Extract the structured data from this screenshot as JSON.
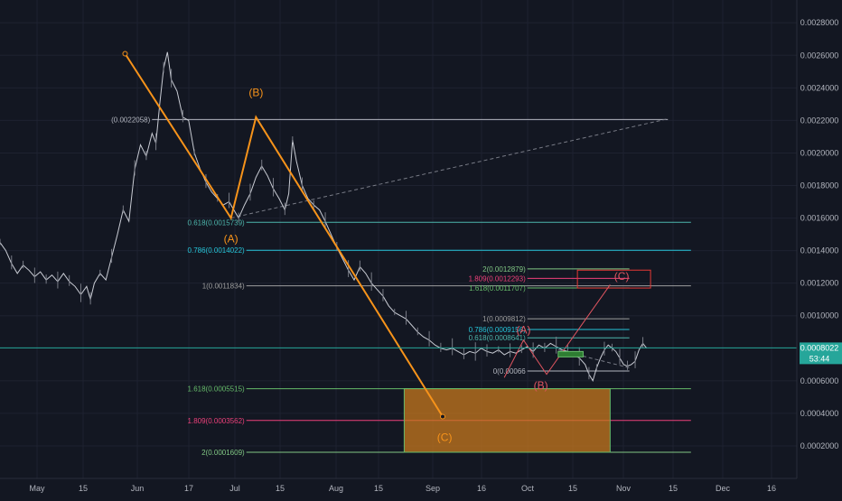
{
  "chart_data": {
    "type": "line",
    "theme": "dark",
    "x_ticks": [
      "May",
      "15",
      "Jun",
      "17",
      "Jul",
      "15",
      "Aug",
      "15",
      "Sep",
      "16",
      "Oct",
      "15",
      "Nov",
      "15",
      "Dec",
      "16"
    ],
    "y_ticks": [
      "0.0028000",
      "0.0026000",
      "0.0024000",
      "0.0022000",
      "0.0020000",
      "0.0018000",
      "0.0016000",
      "0.0014000",
      "0.0012000",
      "0.0010000",
      "0.0006000",
      "0.0004000",
      "0.0002000"
    ],
    "ylim": [
      0.0,
      0.00294
    ],
    "price_badge": {
      "value": "0.0008022",
      "countdown": "53:44",
      "price": 0.0008022,
      "color": "#26a69a"
    },
    "series": [
      {
        "values": [
          [
            0,
            0.00145
          ],
          [
            3,
            0.0014
          ],
          [
            6,
            0.00132
          ],
          [
            9,
            0.00126
          ],
          [
            12,
            0.00131
          ],
          [
            15,
            0.00128
          ],
          [
            18,
            0.00124
          ],
          [
            21,
            0.00127
          ],
          [
            24,
            0.00122
          ],
          [
            27,
            0.00125
          ],
          [
            30,
            0.00121
          ],
          [
            33,
            0.00126
          ],
          [
            36,
            0.00121
          ],
          [
            39,
            0.00118
          ],
          [
            42,
            0.00113
          ],
          [
            45,
            0.00118
          ],
          [
            47,
            0.0011
          ],
          [
            49,
            0.0012
          ],
          [
            52,
            0.00126
          ],
          [
            55,
            0.00122
          ],
          [
            58,
            0.00136
          ],
          [
            61,
            0.0015
          ],
          [
            64,
            0.00165
          ],
          [
            67,
            0.00158
          ],
          [
            70,
            0.0019
          ],
          [
            73,
            0.00205
          ],
          [
            76,
            0.00198
          ],
          [
            79,
            0.00212
          ],
          [
            81,
            0.00206
          ],
          [
            83,
            0.0023
          ],
          [
            85,
            0.00252
          ],
          [
            87,
            0.00262
          ],
          [
            89,
            0.00245
          ],
          [
            92,
            0.00238
          ],
          [
            95,
            0.00222
          ],
          [
            98,
            0.0022
          ],
          [
            101,
            0.002
          ],
          [
            104,
            0.0019
          ],
          [
            107,
            0.00182
          ],
          [
            110,
            0.00176
          ],
          [
            113,
            0.00172
          ],
          [
            116,
            0.00168
          ],
          [
            119,
            0.0017
          ],
          [
            122,
            0.00164
          ],
          [
            124,
            0.0016
          ],
          [
            127,
            0.00168
          ],
          [
            130,
            0.00175
          ],
          [
            133,
            0.00185
          ],
          [
            136,
            0.00192
          ],
          [
            139,
            0.00186
          ],
          [
            142,
            0.00178
          ],
          [
            145,
            0.00172
          ],
          [
            148,
            0.00165
          ],
          [
            150,
            0.00175
          ],
          [
            152,
            0.00208
          ],
          [
            154,
            0.00195
          ],
          [
            157,
            0.0018
          ],
          [
            160,
            0.00172
          ],
          [
            163,
            0.00168
          ],
          [
            166,
            0.00165
          ],
          [
            169,
            0.00158
          ],
          [
            172,
            0.0015
          ],
          [
            175,
            0.00142
          ],
          [
            178,
            0.00135
          ],
          [
            181,
            0.00128
          ],
          [
            184,
            0.00122
          ],
          [
            187,
            0.0013
          ],
          [
            190,
            0.00126
          ],
          [
            193,
            0.0012
          ],
          [
            196,
            0.00116
          ],
          [
            199,
            0.00112
          ],
          [
            202,
            0.00106
          ],
          [
            205,
            0.00102
          ],
          [
            208,
            0.001
          ],
          [
            211,
            0.00098
          ],
          [
            214,
            0.00094
          ],
          [
            217,
            0.0009
          ],
          [
            220,
            0.00087
          ],
          [
            223,
            0.00085
          ],
          [
            226,
            0.00082
          ],
          [
            229,
            0.0008
          ],
          [
            232,
            0.00079
          ],
          [
            235,
            0.0008
          ],
          [
            238,
            0.00078
          ],
          [
            241,
            0.00076
          ],
          [
            244,
            0.00078
          ],
          [
            247,
            0.00077
          ],
          [
            250,
            0.0008
          ],
          [
            253,
            0.00078
          ],
          [
            256,
            0.00077
          ],
          [
            259,
            0.00079
          ],
          [
            262,
            0.00076
          ],
          [
            265,
            0.00078
          ],
          [
            268,
            0.00077
          ],
          [
            271,
            0.00079
          ],
          [
            274,
            0.00081
          ],
          [
            277,
            0.00078
          ],
          [
            280,
            0.00082
          ],
          [
            283,
            0.0008
          ],
          [
            286,
            0.00083
          ],
          [
            289,
            0.00081
          ],
          [
            292,
            0.00079
          ],
          [
            295,
            0.00078
          ],
          [
            298,
            0.00076
          ],
          [
            301,
            0.00074
          ],
          [
            304,
            0.0007
          ],
          [
            306,
            0.00064
          ],
          [
            308,
            0.0006
          ],
          [
            310,
            0.00068
          ],
          [
            312,
            0.00074
          ],
          [
            314,
            0.00079
          ],
          [
            316,
            0.00082
          ],
          [
            318,
            0.0008
          ],
          [
            320,
            0.00078
          ],
          [
            322,
            0.00074
          ],
          [
            324,
            0.0007
          ],
          [
            326,
            0.00069
          ],
          [
            328,
            0.0007
          ],
          [
            330,
            0.00072
          ],
          [
            332,
            0.00079
          ],
          [
            334,
            0.00083
          ],
          [
            336,
            0.0008
          ]
        ]
      }
    ],
    "waves": {
      "big": {
        "points": [
          [
            65,
            0.00261
          ],
          [
            120,
            0.0016
          ],
          [
            133,
            0.00222
          ],
          [
            230,
            0.00038
          ]
        ],
        "labels": [
          "(A)",
          "(B)",
          "(C)"
        ],
        "color": "#f7931a"
      },
      "small": {
        "labels": [
          "(A)",
          "(B)",
          "(C)"
        ],
        "color": "#e05560"
      }
    },
    "fib_big_top": {
      "label": "(0.0022058)",
      "value": 0.0022058,
      "color": "#b2b5be"
    },
    "fib_big": [
      {
        "label": "0.618(0.0015739)",
        "value": 0.0015739,
        "color": "#4db6ac"
      },
      {
        "label": "0.786(0.0014022)",
        "value": 0.0014022,
        "color": "#26c6da"
      },
      {
        "label": "1(0.0011834)",
        "value": 0.0011834,
        "color": "#9e9e9e"
      },
      {
        "label": "1.618(0.0005515)",
        "value": 0.0005515,
        "color": "#66bb6a"
      },
      {
        "label": "1.809(0.0003562)",
        "value": 0.0003562,
        "color": "#ec407a"
      },
      {
        "label": "2(0.0001609)",
        "value": 0.0001609,
        "color": "#81c784"
      }
    ],
    "fib_small": [
      {
        "label": "2(0.0012879)",
        "value": 0.0012879,
        "color": "#81c784"
      },
      {
        "label": "1.809(0.0012293)",
        "value": 0.0012293,
        "color": "#ec407a"
      },
      {
        "label": "1.618(0.0011707)",
        "value": 0.0011707,
        "color": "#66bb6a"
      },
      {
        "label": "1(0.0009812)",
        "value": 0.0009812,
        "color": "#9e9e9e"
      },
      {
        "label": "0.786(0.0009156)",
        "value": 0.0009156,
        "color": "#26c6da"
      },
      {
        "label": "0.618(0.0008641)",
        "value": 0.0008641,
        "color": "#4db6ac"
      },
      {
        "label": "0(0.00066",
        "value": 0.00066,
        "color": "#b2b5be"
      }
    ],
    "target_box": {
      "color": "#c7781e"
    },
    "red_box": {
      "color": "#e53935"
    }
  }
}
